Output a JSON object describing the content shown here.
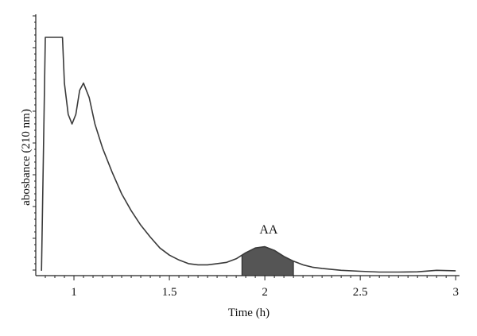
{
  "chart_data": {
    "type": "line",
    "xlabel": "Time (h)",
    "ylabel": "abosbance (210 nm)",
    "xlim": [
      0.8,
      3.02
    ],
    "ylim": [
      0,
      1.0
    ],
    "grid": false,
    "x_ticks": [
      1,
      1.5,
      2,
      2.5,
      3
    ],
    "x_tick_labels": [
      "1",
      "1.5",
      "2",
      "2.5",
      "3"
    ],
    "series": [
      {
        "x": [
          0.83,
          0.85,
          0.86,
          0.94,
          0.95,
          0.97,
          0.99,
          1.01,
          1.03,
          1.05,
          1.08,
          1.11,
          1.15,
          1.2,
          1.25,
          1.3,
          1.35,
          1.4,
          1.45,
          1.5,
          1.55,
          1.6,
          1.65,
          1.7,
          1.75,
          1.8,
          1.85,
          1.9,
          1.95,
          2.0,
          2.05,
          2.1,
          2.15,
          2.2,
          2.25,
          2.3,
          2.4,
          2.5,
          2.6,
          2.7,
          2.8,
          2.9,
          3.0
        ],
        "y": [
          0.02,
          0.99,
          0.99,
          0.99,
          0.8,
          0.67,
          0.63,
          0.67,
          0.77,
          0.8,
          0.74,
          0.63,
          0.53,
          0.43,
          0.34,
          0.27,
          0.21,
          0.16,
          0.115,
          0.085,
          0.065,
          0.05,
          0.045,
          0.045,
          0.05,
          0.055,
          0.07,
          0.095,
          0.115,
          0.12,
          0.105,
          0.08,
          0.06,
          0.045,
          0.035,
          0.03,
          0.022,
          0.018,
          0.015,
          0.015,
          0.016,
          0.022,
          0.02
        ]
      }
    ],
    "annotations": [
      {
        "text": "AA",
        "x": 2.02,
        "y": 0.175
      }
    ],
    "shaded_region": {
      "label": "AA",
      "x_start": 1.88,
      "x_end": 2.15,
      "color": "#555555"
    }
  }
}
